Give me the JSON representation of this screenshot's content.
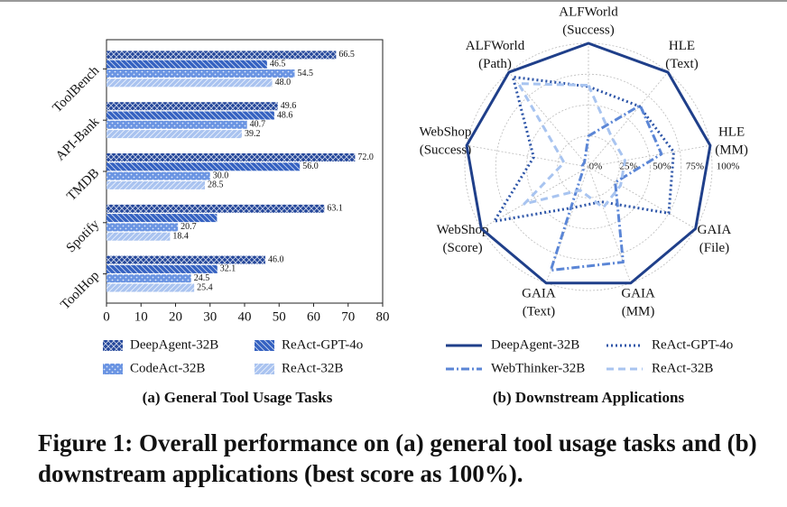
{
  "caption": "Figure 1: Overall performance on (a) general tool usage tasks and (b) downstream applications (best score as 100%).",
  "chart_data": [
    {
      "type": "barh",
      "caption": "(a) General Tool Usage Tasks",
      "categories": [
        "ToolBench",
        "API-Bank",
        "TMDB",
        "Spotify",
        "ToolHop"
      ],
      "series": [
        {
          "name": "DeepAgent-32B",
          "color": "#23469a",
          "hatch": "cross",
          "values": [
            66.5,
            49.6,
            72.0,
            63.1,
            46.0
          ],
          "value_labels": [
            "66.5",
            "49.6",
            "72.0",
            "63.1",
            "46.0"
          ]
        },
        {
          "name": "ReAct-GPT-4o",
          "color": "#3461c1",
          "hatch": "backslash",
          "values": [
            46.5,
            48.6,
            56.0,
            32,
            32.1
          ],
          "value_labels": [
            "46.5",
            "48.6",
            "56.0",
            null,
            "32.1"
          ]
        },
        {
          "name": "CodeAct-32B",
          "color": "#6a94e2",
          "hatch": "dots",
          "values": [
            54.5,
            40.7,
            30.0,
            20.7,
            24.5
          ],
          "value_labels": [
            "54.5",
            "40.7",
            "30.0",
            "20.7",
            "24.5"
          ]
        },
        {
          "name": "ReAct-32B",
          "color": "#a9c3f0",
          "hatch": "slash",
          "values": [
            48.0,
            39.2,
            28.5,
            18.4,
            25.4
          ],
          "value_labels": [
            "48.0",
            "39.2",
            "28.5",
            "18.4",
            "25.4"
          ]
        }
      ],
      "xlim": [
        0,
        80
      ],
      "xticks": [
        0,
        10,
        20,
        30,
        40,
        50,
        60,
        70,
        80
      ]
    },
    {
      "type": "radar",
      "caption": "(b) Downstream Applications",
      "categories": [
        [
          "ALFWorld",
          "(Success)"
        ],
        [
          "HLE",
          "(Text)"
        ],
        [
          "HLE",
          "(MM)"
        ],
        [
          "GAIA",
          "(File)"
        ],
        [
          "GAIA",
          "(MM)"
        ],
        [
          "GAIA",
          "(Text)"
        ],
        [
          "WebShop",
          "(Score)"
        ],
        [
          "WebShop",
          "(Success)"
        ],
        [
          "ALFWorld",
          "(Path)"
        ]
      ],
      "series": [
        {
          "name": "DeepAgent-32B",
          "color": "#1f3f8a",
          "dash": "solid",
          "values": [
            100,
            100,
            100,
            100,
            100,
            100,
            100,
            100,
            100
          ]
        },
        {
          "name": "ReAct-GPT-4o",
          "color": "#2d55a8",
          "dash": "dotted",
          "values": [
            65,
            64,
            70,
            75,
            30,
            35,
            88,
            45,
            95
          ]
        },
        {
          "name": "WebThinker-32B",
          "color": "#5b86d6",
          "dash": "dashdot",
          "values": [
            25,
            65,
            60,
            25,
            82,
            89,
            5,
            5,
            5
          ]
        },
        {
          "name": "ReAct-32B",
          "color": "#a8c4f0",
          "dash": "dashed",
          "values": [
            66,
            30,
            30,
            30,
            35,
            20,
            60,
            20,
            88
          ]
        }
      ],
      "rlim": [
        0,
        100
      ],
      "rticks": [
        {
          "value": 0,
          "label": "0%"
        },
        {
          "value": 25,
          "label": "25%"
        },
        {
          "value": 50,
          "label": "50%"
        },
        {
          "value": 75,
          "label": "75%"
        },
        {
          "value": 100,
          "label": "100%"
        }
      ],
      "grid": true
    }
  ]
}
